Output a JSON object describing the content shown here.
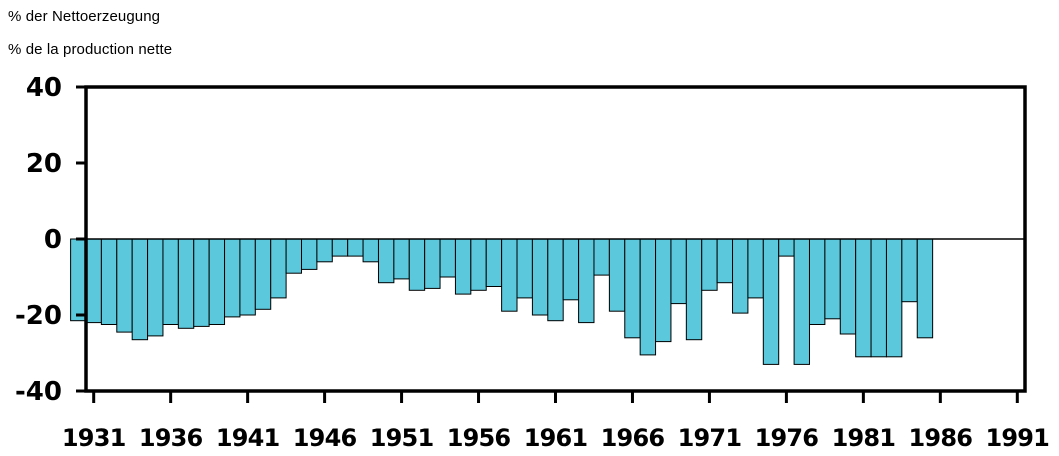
{
  "units": {
    "line1": "% der Nettoerzeugung",
    "line2": "% de la production nette"
  },
  "chart_data": {
    "type": "bar",
    "title": "",
    "xlabel": "",
    "ylabel": "% der Nettoerzeugung / % de la production nette",
    "x_ticks": [
      "1931",
      "1936",
      "1941",
      "1946",
      "1951",
      "1956",
      "1961",
      "1966",
      "1971",
      "1976",
      "1981",
      "1986",
      "1991"
    ],
    "y_ticks": [
      "40",
      "20",
      "0",
      "-20",
      "-40"
    ],
    "xlim": [
      1930.5,
      1991.5
    ],
    "ylim": [
      -40,
      40
    ],
    "grid": false,
    "colors": {
      "bar_fill": "#5bc8dc",
      "bar_stroke": "#000000"
    },
    "categories": [
      1930,
      1931,
      1932,
      1933,
      1934,
      1935,
      1936,
      1937,
      1938,
      1939,
      1940,
      1941,
      1942,
      1943,
      1944,
      1945,
      1946,
      1947,
      1948,
      1949,
      1950,
      1951,
      1952,
      1953,
      1954,
      1955,
      1956,
      1957,
      1958,
      1959,
      1960,
      1961,
      1962,
      1963,
      1964,
      1965,
      1966,
      1967,
      1968,
      1969,
      1970,
      1971,
      1972,
      1973,
      1974,
      1975,
      1976,
      1977,
      1978,
      1979,
      1980,
      1981,
      1982,
      1983,
      1984,
      1985
    ],
    "values": [
      -21.5,
      -22,
      -22.5,
      -24.5,
      -26.5,
      -25.5,
      -22.5,
      -23.5,
      -23,
      -22.5,
      -20.5,
      -20,
      -18.5,
      -15.5,
      -9,
      -8,
      -6,
      -4.5,
      -4.5,
      -6,
      -11.5,
      -10.5,
      -13.5,
      -13,
      -10,
      -14.5,
      -13.5,
      -12.5,
      -19,
      -15.5,
      -20,
      -21.5,
      -16,
      -22,
      -9.5,
      -19,
      -26,
      -30.5,
      -27,
      -17,
      -26.5,
      -13.5,
      -11.5,
      -19.5,
      -15.5,
      -33,
      -4.5,
      -33,
      -22.5,
      -21,
      -25,
      -31,
      -31,
      -31,
      -16.5,
      -26
    ]
  }
}
